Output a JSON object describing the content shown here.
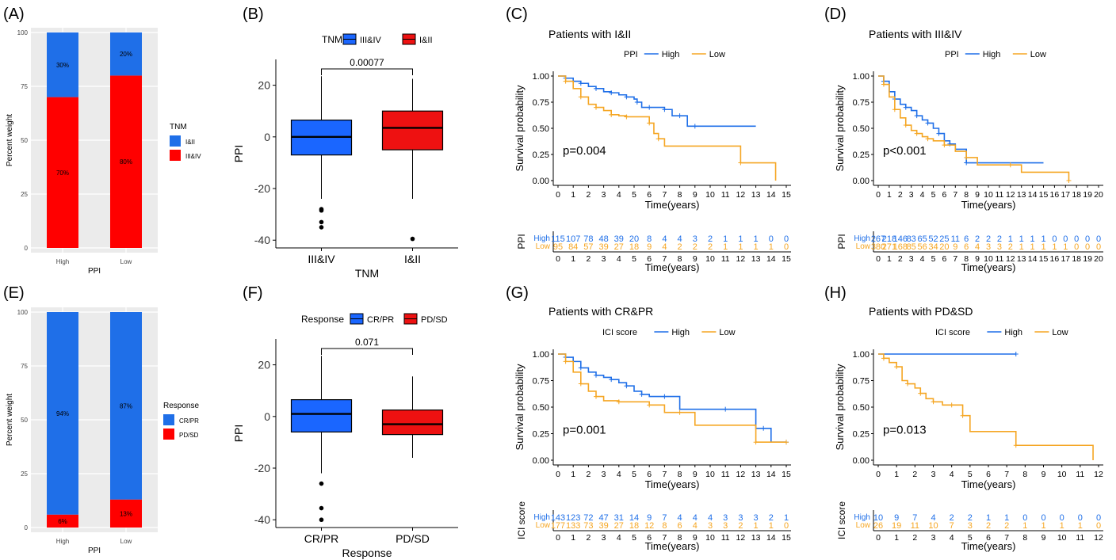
{
  "colors": {
    "blue": "#1f6fe8",
    "red": "#ff0000",
    "orange": "#f5a623",
    "panel_bg": "#ebebeb",
    "box_blue": "#1a66ff",
    "box_red": "#ee1111"
  },
  "chart_data": [
    {
      "panel": "(A)",
      "type": "bar",
      "stacked": true,
      "categories": [
        "High",
        "Low"
      ],
      "series": [
        {
          "name": "I&II",
          "values": [
            30,
            20
          ],
          "labels": [
            "30%",
            "20%"
          ],
          "color": "#1f6fe8"
        },
        {
          "name": "III&IV",
          "values": [
            70,
            80
          ],
          "labels": [
            "70%",
            "80%"
          ],
          "color": "#ff0000"
        }
      ],
      "xlabel": "PPI",
      "ylabel": "Percent weight",
      "ylim": [
        0,
        100
      ],
      "yticks": [
        "0",
        "25",
        "50",
        "75",
        "100"
      ],
      "legend_title": "TNM",
      "grid": true,
      "legend_position": "right"
    },
    {
      "panel": "(B)",
      "type": "box",
      "categories": [
        "III&IV",
        "I&II"
      ],
      "legend_title": "TNM",
      "legend_entries": [
        "III&IV",
        "I&II"
      ],
      "boxes": [
        {
          "name": "III&IV",
          "min": -24,
          "q1": -7,
          "median": 0,
          "q3": 6.5,
          "max": 23.5,
          "outliers": [
            -28,
            -28.5,
            -33,
            -35
          ],
          "color": "#1a66ff"
        },
        {
          "name": "I&II",
          "min": -24,
          "q1": -5,
          "median": 3.5,
          "q3": 10,
          "max": 22.5,
          "outliers": [
            -39.5
          ],
          "color": "#ee1111"
        }
      ],
      "pvalue": "0.00077",
      "xlabel": "TNM",
      "ylabel": "PPI",
      "ylim": [
        -43,
        30
      ],
      "yticks": [
        "-40",
        "-20",
        "0",
        "20"
      ],
      "legend_position": "top"
    },
    {
      "panel": "(C)",
      "type": "line",
      "subtype": "kaplan-meier",
      "title": "Patients with I&II",
      "legend_title": "PPI",
      "series": [
        {
          "name": "High",
          "color": "#1f6fe8",
          "x": [
            0,
            0.5,
            1,
            1.5,
            2,
            2.5,
            3,
            3.5,
            4,
            4.5,
            5,
            5.2,
            5.5,
            6,
            6.5,
            7,
            7.5,
            8,
            8.5,
            9,
            13
          ],
          "y": [
            1,
            0.98,
            0.95,
            0.93,
            0.9,
            0.88,
            0.85,
            0.84,
            0.82,
            0.8,
            0.78,
            0.75,
            0.7,
            0.7,
            0.7,
            0.68,
            0.62,
            0.62,
            0.52,
            0.52,
            0.52
          ]
        },
        {
          "name": "Low",
          "color": "#f5a623",
          "x": [
            0,
            0.5,
            1,
            1.5,
            2,
            2.5,
            3,
            3.5,
            4,
            4.5,
            5,
            6,
            6.3,
            6.6,
            7,
            12,
            14.3
          ],
          "y": [
            1,
            0.95,
            0.88,
            0.8,
            0.73,
            0.7,
            0.67,
            0.63,
            0.62,
            0.61,
            0.61,
            0.55,
            0.45,
            0.4,
            0.33,
            0.17,
            0
          ]
        }
      ],
      "pvalue": "p=0.004",
      "xlabel": "Time(years)",
      "ylabel": "Survival probability",
      "xlim": [
        0,
        15
      ],
      "ylim": [
        0,
        1
      ],
      "yticks": [
        "0.00",
        "0.25",
        "0.50",
        "0.75",
        "1.00"
      ],
      "xticks": [
        "0",
        "1",
        "2",
        "3",
        "4",
        "5",
        "6",
        "7",
        "8",
        "9",
        "10",
        "11",
        "12",
        "13",
        "14",
        "15"
      ],
      "risk_table": {
        "ylabel": "PPI",
        "rows": [
          {
            "name": "High",
            "values": [
              "115",
              "107",
              "78",
              "48",
              "39",
              "20",
              "8",
              "4",
              "4",
              "3",
              "2",
              "1",
              "1",
              "1",
              "0",
              "0"
            ]
          },
          {
            "name": "Low",
            "values": [
              "95",
              "84",
              "57",
              "39",
              "27",
              "18",
              "9",
              "4",
              "2",
              "2",
              "2",
              "1",
              "1",
              "1",
              "1",
              "0"
            ]
          }
        ]
      }
    },
    {
      "panel": "(D)",
      "type": "line",
      "subtype": "kaplan-meier",
      "title": "Patients with III&IV",
      "legend_title": "PPI",
      "series": [
        {
          "name": "High",
          "color": "#1f6fe8",
          "x": [
            0,
            0.5,
            1,
            1.5,
            2,
            2.5,
            3,
            3.5,
            4,
            4.5,
            5,
            5.5,
            6,
            6.5,
            7,
            8,
            15
          ],
          "y": [
            1,
            0.95,
            0.85,
            0.78,
            0.73,
            0.7,
            0.67,
            0.62,
            0.58,
            0.55,
            0.5,
            0.45,
            0.38,
            0.35,
            0.3,
            0.17,
            0.17
          ]
        },
        {
          "name": "Low",
          "color": "#f5a623",
          "x": [
            0,
            0.5,
            1,
            1.5,
            2,
            2.5,
            3,
            3.5,
            4,
            4.5,
            5,
            6,
            7,
            8,
            9,
            12,
            13,
            17.3
          ],
          "y": [
            1,
            0.92,
            0.8,
            0.68,
            0.6,
            0.53,
            0.48,
            0.45,
            0.42,
            0.4,
            0.38,
            0.34,
            0.28,
            0.22,
            0.15,
            0.15,
            0.08,
            0
          ]
        }
      ],
      "pvalue": "p<0.001",
      "xlabel": "Time(years)",
      "ylabel": "Survival probability",
      "xlim": [
        0,
        20
      ],
      "ylim": [
        0,
        1
      ],
      "yticks": [
        "0.00",
        "0.25",
        "0.50",
        "0.75",
        "1.00"
      ],
      "xticks": [
        "0",
        "1",
        "2",
        "3",
        "4",
        "5",
        "6",
        "7",
        "8",
        "9",
        "10",
        "11",
        "12",
        "13",
        "14",
        "15",
        "16",
        "17",
        "18",
        "19",
        "20"
      ],
      "risk_table": {
        "ylabel": "PPI",
        "rows": [
          {
            "name": "High",
            "values": [
              "267",
              "218",
              "146",
              "83",
              "65",
              "52",
              "25",
              "11",
              "6",
              "2",
              "2",
              "2",
              "1",
              "1",
              "1",
              "1",
              "0",
              "0",
              "0",
              "0",
              "0"
            ]
          },
          {
            "name": "Low",
            "values": [
              "380",
              "271",
              "168",
              "85",
              "56",
              "34",
              "20",
              "9",
              "6",
              "4",
              "3",
              "3",
              "2",
              "1",
              "1",
              "1",
              "1",
              "1",
              "0",
              "0",
              "0"
            ]
          }
        ]
      }
    },
    {
      "panel": "(E)",
      "type": "bar",
      "stacked": true,
      "categories": [
        "High",
        "Low"
      ],
      "series": [
        {
          "name": "CR/PR",
          "values": [
            94,
            87
          ],
          "labels": [
            "94%",
            "87%"
          ],
          "color": "#1f6fe8"
        },
        {
          "name": "PD/SD",
          "values": [
            6,
            13
          ],
          "labels": [
            "6%",
            "13%"
          ],
          "color": "#ff0000"
        }
      ],
      "xlabel": "PPI",
      "ylabel": "Percent weight",
      "ylim": [
        0,
        100
      ],
      "yticks": [
        "0",
        "25",
        "50",
        "75",
        "100"
      ],
      "legend_title": "Response",
      "grid": true,
      "legend_position": "right"
    },
    {
      "panel": "(F)",
      "type": "box",
      "categories": [
        "CR/PR",
        "PD/SD"
      ],
      "legend_title": "Response",
      "legend_entries": [
        "CR/PR",
        "PD/SD"
      ],
      "boxes": [
        {
          "name": "CR/PR",
          "min": -22,
          "q1": -6,
          "median": 1,
          "q3": 6.5,
          "max": 23.5,
          "outliers": [
            -26,
            -35.5,
            -40
          ],
          "color": "#1a66ff"
        },
        {
          "name": "PD/SD",
          "min": -16,
          "q1": -7,
          "median": -3,
          "q3": 2.5,
          "max": 15.5,
          "outliers": [],
          "color": "#ee1111"
        }
      ],
      "pvalue": "0.071",
      "xlabel": "Response",
      "ylabel": "PPI",
      "ylim": [
        -43,
        30
      ],
      "yticks": [
        "-40",
        "-20",
        "0",
        "20"
      ],
      "legend_position": "top"
    },
    {
      "panel": "(G)",
      "type": "line",
      "subtype": "kaplan-meier",
      "title": "Patients with CR&PR",
      "legend_title": "ICI score",
      "series": [
        {
          "name": "High",
          "color": "#1f6fe8",
          "x": [
            0,
            0.5,
            1,
            1.5,
            2,
            2.5,
            3,
            3.5,
            4,
            4.5,
            5,
            5.5,
            6,
            7,
            8,
            11,
            13,
            13.5,
            14,
            15
          ],
          "y": [
            1,
            0.97,
            0.93,
            0.87,
            0.83,
            0.8,
            0.78,
            0.76,
            0.73,
            0.7,
            0.65,
            0.62,
            0.6,
            0.6,
            0.48,
            0.48,
            0.3,
            0.3,
            0.17,
            0.17
          ]
        },
        {
          "name": "Low",
          "color": "#f5a623",
          "x": [
            0,
            0.5,
            1,
            1.5,
            2,
            2.5,
            3,
            4,
            5,
            6,
            7,
            8,
            9,
            13,
            14,
            15
          ],
          "y": [
            1,
            0.93,
            0.83,
            0.72,
            0.65,
            0.6,
            0.56,
            0.55,
            0.55,
            0.52,
            0.45,
            0.45,
            0.33,
            0.17,
            0.17,
            0.17
          ]
        }
      ],
      "pvalue": "p=0.001",
      "xlabel": "Time(years)",
      "ylabel": "Survival probability",
      "xlim": [
        0,
        15
      ],
      "ylim": [
        0,
        1
      ],
      "yticks": [
        "0.00",
        "0.25",
        "0.50",
        "0.75",
        "1.00"
      ],
      "xticks": [
        "0",
        "1",
        "2",
        "3",
        "4",
        "5",
        "6",
        "7",
        "8",
        "9",
        "10",
        "11",
        "12",
        "13",
        "14",
        "15"
      ],
      "risk_table": {
        "ylabel": "ICI score",
        "rows": [
          {
            "name": "High",
            "values": [
              "143",
              "123",
              "72",
              "47",
              "31",
              "14",
              "9",
              "7",
              "4",
              "4",
              "4",
              "3",
              "3",
              "3",
              "2",
              "1"
            ]
          },
          {
            "name": "Low",
            "values": [
              "177",
              "133",
              "73",
              "39",
              "27",
              "18",
              "12",
              "8",
              "6",
              "4",
              "3",
              "3",
              "2",
              "1",
              "1",
              "0"
            ]
          }
        ]
      }
    },
    {
      "panel": "(H)",
      "type": "line",
      "subtype": "kaplan-meier",
      "title": "Patients with PD&SD",
      "legend_title": "ICI score",
      "series": [
        {
          "name": "High",
          "color": "#1f6fe8",
          "x": [
            0,
            7.5
          ],
          "y": [
            1,
            1
          ]
        },
        {
          "name": "Low",
          "color": "#f5a623",
          "x": [
            0,
            0.3,
            0.6,
            1,
            1.3,
            1.6,
            2,
            2.3,
            2.6,
            3,
            3.5,
            4,
            4.2,
            4.6,
            5,
            7.5,
            11.7
          ],
          "y": [
            1,
            0.96,
            0.92,
            0.88,
            0.75,
            0.72,
            0.68,
            0.63,
            0.58,
            0.55,
            0.52,
            0.52,
            0.52,
            0.42,
            0.27,
            0.14,
            0
          ]
        }
      ],
      "pvalue": "p=0.013",
      "xlabel": "Time(years)",
      "ylabel": "Survival probability",
      "xlim": [
        0,
        12
      ],
      "ylim": [
        0,
        1
      ],
      "yticks": [
        "0.00",
        "0.25",
        "0.50",
        "0.75",
        "1.00"
      ],
      "xticks": [
        "0",
        "1",
        "2",
        "3",
        "4",
        "5",
        "6",
        "7",
        "8",
        "9",
        "10",
        "11",
        "12"
      ],
      "risk_table": {
        "ylabel": "ICI score",
        "rows": [
          {
            "name": "High",
            "values": [
              "10",
              "9",
              "7",
              "4",
              "2",
              "2",
              "1",
              "1",
              "0",
              "0",
              "0",
              "0",
              "0"
            ]
          },
          {
            "name": "Low",
            "values": [
              "26",
              "19",
              "11",
              "10",
              "7",
              "3",
              "2",
              "2",
              "1",
              "1",
              "1",
              "1",
              "0"
            ]
          }
        ]
      }
    }
  ]
}
